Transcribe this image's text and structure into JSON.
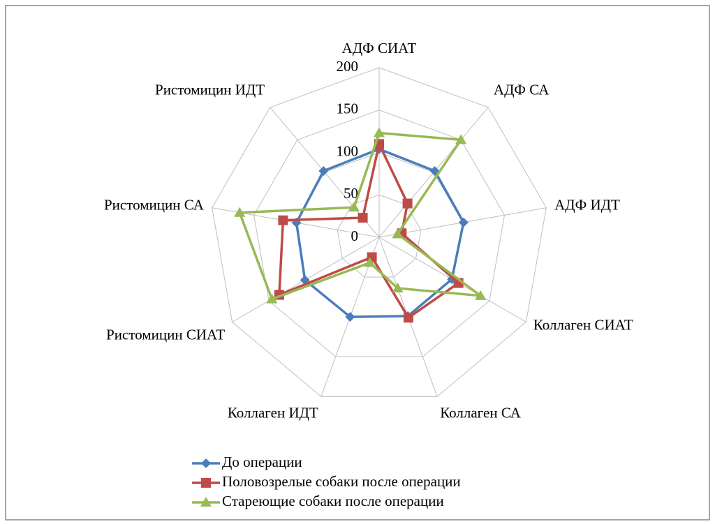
{
  "chart_data": {
    "type": "radar",
    "categories": [
      "АДФ СИАТ",
      "АДФ СА",
      "АДФ ИДТ",
      "Коллаген СИАТ",
      "Коллаген СА",
      "Коллаген ИДТ",
      "Ристомицин СИАТ",
      "Ристомицин СА",
      "Ристомицин ИДТ"
    ],
    "series": [
      {
        "name": "До операции",
        "color": "#4a7ebb",
        "marker": "diamond",
        "values": [
          104,
          102,
          101,
          99,
          99,
          100,
          101,
          99,
          102
        ]
      },
      {
        "name": "Половозрелые собаки после операции",
        "color": "#be4b48",
        "marker": "square",
        "values": [
          110,
          52,
          27,
          108,
          101,
          25,
          136,
          115,
          30
        ]
      },
      {
        "name": "Стареющие собаки после операции",
        "color": "#98b954",
        "marker": "triangle",
        "values": [
          123,
          150,
          22,
          138,
          64,
          32,
          146,
          167,
          46
        ]
      }
    ],
    "ylim": [
      0,
      200
    ],
    "yticks": [
      0,
      50,
      100,
      150,
      200
    ],
    "grid": true,
    "legend": "bottom"
  }
}
